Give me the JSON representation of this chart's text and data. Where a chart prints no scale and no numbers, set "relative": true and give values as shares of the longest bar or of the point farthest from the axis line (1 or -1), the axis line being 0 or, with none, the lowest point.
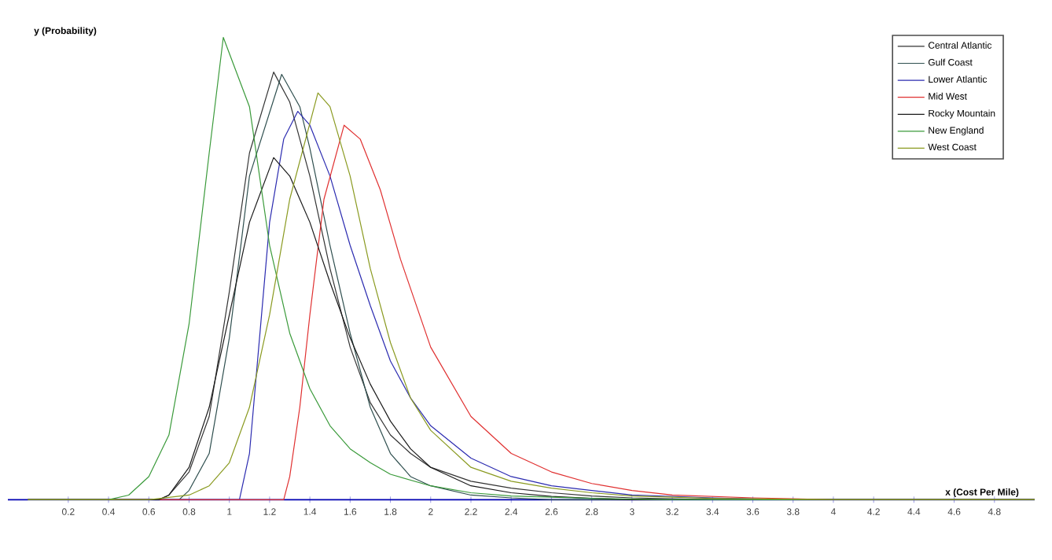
{
  "chart_data": {
    "type": "line",
    "relative": true,
    "xlabel": "x (Cost Per Mile)",
    "ylabel": "y (Probability)",
    "xlim": [
      -0.1,
      5.0
    ],
    "xticks": [
      0.2,
      0.4,
      0.6,
      0.8,
      1,
      1.2,
      1.4,
      1.6,
      1.8,
      2,
      2.2,
      2.4,
      2.6,
      2.8,
      3,
      3.2,
      3.4,
      3.6,
      3.8,
      4,
      4.2,
      4.4,
      4.6,
      4.8
    ],
    "legend": "top right",
    "marker": "none",
    "series": [
      {
        "name": "Central Atlantic",
        "color": "#333333",
        "x": [
          0,
          0.65,
          0.7,
          0.8,
          0.9,
          1.0,
          1.1,
          1.22,
          1.3,
          1.4,
          1.5,
          1.6,
          1.7,
          1.8,
          1.9,
          2.0,
          2.2,
          2.4,
          2.6,
          2.8,
          3.0,
          3.4,
          5.0
        ],
        "values": [
          0,
          0,
          0.01,
          0.06,
          0.18,
          0.45,
          0.75,
          0.925,
          0.86,
          0.7,
          0.5,
          0.33,
          0.21,
          0.14,
          0.1,
          0.07,
          0.04,
          0.025,
          0.015,
          0.008,
          0.004,
          0,
          0
        ]
      },
      {
        "name": "Gulf Coast",
        "color": "#2f4f4f",
        "x": [
          0,
          0.75,
          0.8,
          0.9,
          1.0,
          1.1,
          1.26,
          1.35,
          1.4,
          1.5,
          1.6,
          1.7,
          1.8,
          1.9,
          2.0,
          2.2,
          2.4,
          2.6,
          5.0
        ],
        "values": [
          0,
          0,
          0.02,
          0.1,
          0.35,
          0.7,
          0.92,
          0.85,
          0.76,
          0.55,
          0.36,
          0.2,
          0.1,
          0.05,
          0.03,
          0.01,
          0.004,
          0,
          0
        ]
      },
      {
        "name": "Lower Atlantic",
        "color": "#2b2bb0",
        "x": [
          0,
          1.05,
          1.1,
          1.15,
          1.2,
          1.27,
          1.34,
          1.4,
          1.5,
          1.6,
          1.7,
          1.8,
          1.9,
          2.0,
          2.2,
          2.4,
          2.6,
          2.8,
          3.0,
          3.4,
          3.8,
          5.0
        ],
        "values": [
          0,
          0,
          0.1,
          0.35,
          0.6,
          0.78,
          0.84,
          0.81,
          0.7,
          0.55,
          0.42,
          0.3,
          0.22,
          0.16,
          0.09,
          0.05,
          0.03,
          0.02,
          0.01,
          0.004,
          0,
          0
        ]
      },
      {
        "name": "Mid West",
        "color": "#e03030",
        "x": [
          0,
          1.27,
          1.3,
          1.35,
          1.4,
          1.47,
          1.57,
          1.65,
          1.75,
          1.85,
          2.0,
          2.2,
          2.4,
          2.6,
          2.8,
          3.0,
          3.2,
          3.6,
          4.0,
          5.0
        ],
        "values": [
          0,
          0,
          0.05,
          0.2,
          0.4,
          0.65,
          0.81,
          0.78,
          0.67,
          0.52,
          0.33,
          0.18,
          0.1,
          0.06,
          0.035,
          0.02,
          0.01,
          0.004,
          0,
          0
        ]
      },
      {
        "name": "Rocky Mountain",
        "color": "#1a1a1a",
        "x": [
          0,
          0.65,
          0.7,
          0.8,
          0.9,
          1.0,
          1.1,
          1.22,
          1.3,
          1.4,
          1.5,
          1.6,
          1.7,
          1.8,
          1.9,
          2.0,
          2.2,
          2.4,
          2.6,
          2.8,
          3.0,
          5.0
        ],
        "values": [
          0,
          0,
          0.01,
          0.07,
          0.2,
          0.4,
          0.6,
          0.74,
          0.7,
          0.6,
          0.47,
          0.35,
          0.25,
          0.17,
          0.11,
          0.07,
          0.03,
          0.015,
          0.007,
          0.003,
          0,
          0
        ]
      },
      {
        "name": "New England",
        "color": "#3a9a3a",
        "x": [
          0,
          0.4,
          0.5,
          0.6,
          0.7,
          0.8,
          0.9,
          0.97,
          1.1,
          1.2,
          1.3,
          1.4,
          1.5,
          1.6,
          1.7,
          1.8,
          2.0,
          2.2,
          2.4,
          2.8,
          3.2,
          5.0
        ],
        "values": [
          0,
          0,
          0.01,
          0.05,
          0.14,
          0.38,
          0.75,
          1.0,
          0.85,
          0.55,
          0.36,
          0.24,
          0.16,
          0.11,
          0.08,
          0.055,
          0.03,
          0.015,
          0.008,
          0.003,
          0,
          0
        ]
      },
      {
        "name": "West Coast",
        "color": "#8a9a20",
        "x": [
          0,
          0.6,
          0.8,
          0.9,
          1.0,
          1.1,
          1.2,
          1.3,
          1.44,
          1.5,
          1.6,
          1.7,
          1.8,
          1.9,
          2.0,
          2.2,
          2.4,
          2.6,
          2.8,
          3.0,
          3.4,
          4.0,
          5.0
        ],
        "values": [
          0,
          0,
          0.01,
          0.03,
          0.08,
          0.2,
          0.4,
          0.65,
          0.88,
          0.85,
          0.7,
          0.5,
          0.34,
          0.22,
          0.15,
          0.07,
          0.04,
          0.025,
          0.015,
          0.008,
          0.003,
          0,
          0
        ]
      }
    ]
  }
}
